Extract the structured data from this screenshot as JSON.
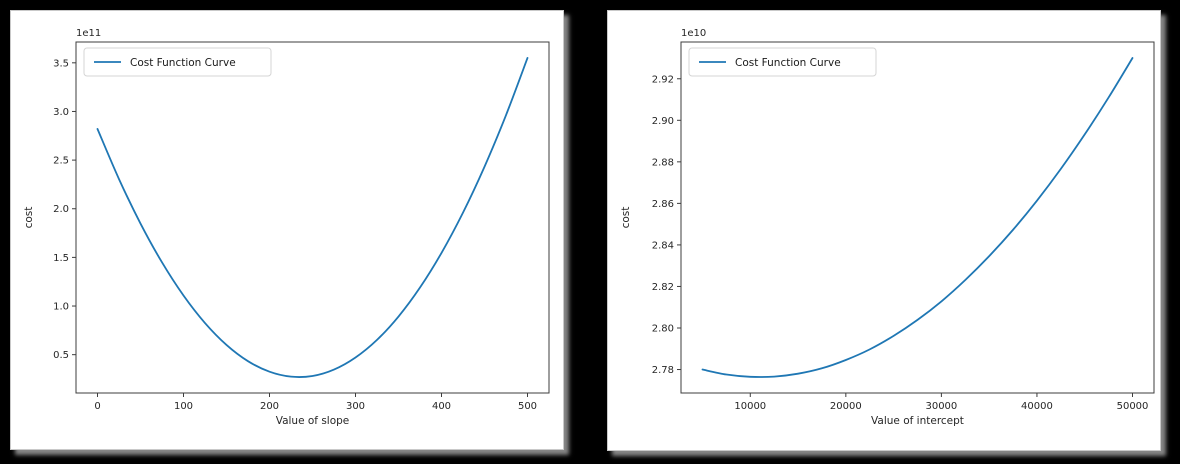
{
  "page": {
    "background": "#000000",
    "panel_background": "#ffffff",
    "curve_color": "#1f77b4",
    "text_color": "#262626"
  },
  "chart_data": [
    {
      "type": "line",
      "title": "",
      "offset_text": "1e11",
      "xlabel": "Value of slope",
      "ylabel": "cost",
      "legend_position": "upper left",
      "legend_label": "Cost Function Curve",
      "line_color": "#1f77b4",
      "grid": false,
      "xlim": [
        -25,
        525
      ],
      "ylim": [
        0.106,
        3.714
      ],
      "y_units": "1e11",
      "xticks": [
        0,
        100,
        200,
        300,
        400,
        500
      ],
      "xtick_labels": [
        "0",
        "100",
        "200",
        "300",
        "400",
        "500"
      ],
      "yticks": [
        0.5,
        1.0,
        1.5,
        2.0,
        2.5,
        3.0,
        3.5
      ],
      "ytick_labels": [
        "0.5",
        "1.0",
        "1.5",
        "2.0",
        "2.5",
        "3.0",
        "3.5"
      ],
      "series": [
        {
          "name": "Cost Function Curve",
          "x": [
            0,
            25,
            50,
            75,
            100,
            125,
            150,
            175,
            200,
            225,
            250,
            275,
            300,
            325,
            350,
            375,
            400,
            425,
            450,
            475,
            500
          ],
          "y": [
            2.82,
            2.305,
            1.848,
            1.449,
            1.108,
            0.825,
            0.6,
            0.433,
            0.325,
            0.274,
            0.281,
            0.347,
            0.471,
            0.652,
            0.892,
            1.19,
            1.546,
            1.96,
            2.432,
            2.962,
            3.55
          ]
        }
      ]
    },
    {
      "type": "line",
      "title": "",
      "offset_text": "1e10",
      "xlabel": "Value of intercept",
      "ylabel": "cost",
      "legend_position": "upper left",
      "legend_label": "Cost Function Curve",
      "line_color": "#1f77b4",
      "grid": false,
      "xlim": [
        2750,
        52250
      ],
      "ylim": [
        2.7687,
        2.9377
      ],
      "y_units": "1e10",
      "xticks": [
        10000,
        20000,
        30000,
        40000,
        50000
      ],
      "xtick_labels": [
        "10000",
        "20000",
        "30000",
        "40000",
        "50000"
      ],
      "yticks": [
        2.78,
        2.8,
        2.82,
        2.84,
        2.86,
        2.88,
        2.9,
        2.92
      ],
      "ytick_labels": [
        "2.78",
        "2.80",
        "2.82",
        "2.84",
        "2.86",
        "2.88",
        "2.90",
        "2.92"
      ],
      "series": [
        {
          "name": "Cost Function Curve",
          "x": [
            5000,
            7500,
            10000,
            12500,
            15000,
            17500,
            20000,
            22500,
            25000,
            27500,
            30000,
            32500,
            35000,
            37500,
            40000,
            42500,
            45000,
            47500,
            50000
          ],
          "y": [
            2.78,
            2.7776,
            2.7765,
            2.7766,
            2.778,
            2.7806,
            2.7846,
            2.7897,
            2.7962,
            2.8039,
            2.8128,
            2.8231,
            2.8346,
            2.8473,
            2.8613,
            2.8766,
            2.8932,
            2.911,
            2.93
          ]
        }
      ]
    }
  ]
}
